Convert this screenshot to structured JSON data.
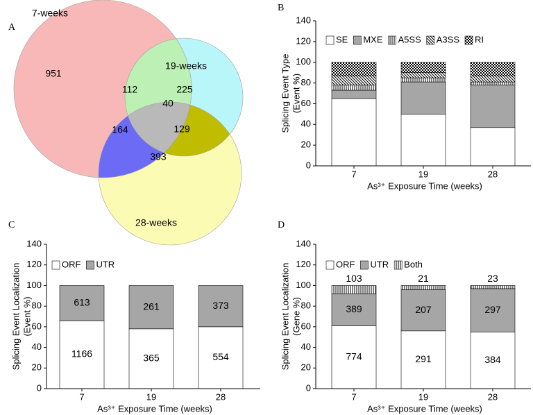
{
  "chart_data": [
    {
      "type": "venn",
      "panel": "A",
      "sets": [
        {
          "name": "7-weeks"
        },
        {
          "name": "19-weeks"
        },
        {
          "name": "28-weeks"
        }
      ],
      "regions": [
        {
          "sets": [
            "7-weeks"
          ],
          "value": 951,
          "color": "#f8b8b8"
        },
        {
          "sets": [
            "19-weeks"
          ],
          "value": 225,
          "color": "#b8f6fa"
        },
        {
          "sets": [
            "28-weeks"
          ],
          "value": 393,
          "color": "#fbfbb4"
        },
        {
          "sets": [
            "7-weeks",
            "19-weeks"
          ],
          "value": 112,
          "color": "#bdf0b5"
        },
        {
          "sets": [
            "7-weeks",
            "28-weeks"
          ],
          "value": 164,
          "color": "#6b6bf5"
        },
        {
          "sets": [
            "19-weeks",
            "28-weeks"
          ],
          "value": 129,
          "color": "#c0bc00"
        },
        {
          "sets": [
            "7-weeks",
            "19-weeks",
            "28-weeks"
          ],
          "value": 40,
          "color": "#b9b9b9"
        }
      ]
    },
    {
      "type": "bar",
      "panel": "B",
      "stacked": true,
      "ylabel": [
        "Splicing Event Type",
        "(Event %)"
      ],
      "xlabel": "As³⁺ Exposure Time (weeks)",
      "categories": [
        "7",
        "19",
        "28"
      ],
      "ylim": [
        0,
        140
      ],
      "yticks": [
        0,
        20,
        40,
        60,
        80,
        100,
        120,
        140
      ],
      "series": [
        {
          "name": "SE",
          "color": "#ffffff",
          "values": [
            65,
            50,
            37
          ]
        },
        {
          "name": "MXE",
          "color": "#a6a6a6",
          "values": [
            8,
            31,
            41
          ]
        },
        {
          "name": "A5SS",
          "color": "#000000",
          "pattern": "vertical",
          "values": [
            5,
            4,
            3
          ]
        },
        {
          "name": "A3SS",
          "color": "#000000",
          "pattern": "diagonal",
          "values": [
            9,
            5,
            6
          ]
        },
        {
          "name": "RI",
          "color": "#000000",
          "pattern": "checker",
          "values": [
            13,
            10,
            13
          ]
        }
      ]
    },
    {
      "type": "bar",
      "panel": "C",
      "stacked": true,
      "ylabel": [
        "Splicing Event Localization",
        "(Event %)"
      ],
      "xlabel": "As³⁺ Exposure Time (weeks)",
      "categories": [
        "7",
        "19",
        "28"
      ],
      "ylim": [
        0,
        140
      ],
      "yticks": [
        0,
        20,
        40,
        60,
        80,
        100,
        120,
        140
      ],
      "series": [
        {
          "name": "ORF",
          "color": "#ffffff",
          "values": [
            66,
            58,
            60
          ],
          "counts": [
            1166,
            365,
            554
          ]
        },
        {
          "name": "UTR",
          "color": "#a6a6a6",
          "values": [
            34,
            42,
            40
          ],
          "counts": [
            613,
            261,
            373
          ]
        }
      ]
    },
    {
      "type": "bar",
      "panel": "D",
      "stacked": true,
      "ylabel": [
        "Splicing Event Localization",
        "(Gene %)"
      ],
      "xlabel": "As³⁺ Exposure Time (weeks)",
      "categories": [
        "7",
        "19",
        "28"
      ],
      "ylim": [
        0,
        140
      ],
      "yticks": [
        0,
        20,
        40,
        60,
        80,
        100,
        120,
        140
      ],
      "series": [
        {
          "name": "ORF",
          "color": "#ffffff",
          "values": [
            61,
            56,
            55
          ],
          "counts": [
            774,
            291,
            384
          ]
        },
        {
          "name": "UTR",
          "color": "#a6a6a6",
          "values": [
            31,
            40,
            42
          ],
          "counts": [
            389,
            207,
            297
          ]
        },
        {
          "name": "Both",
          "color": "#000000",
          "pattern": "vertical",
          "values": [
            8,
            4,
            3
          ],
          "counts": [
            103,
            21,
            23
          ]
        }
      ]
    }
  ]
}
